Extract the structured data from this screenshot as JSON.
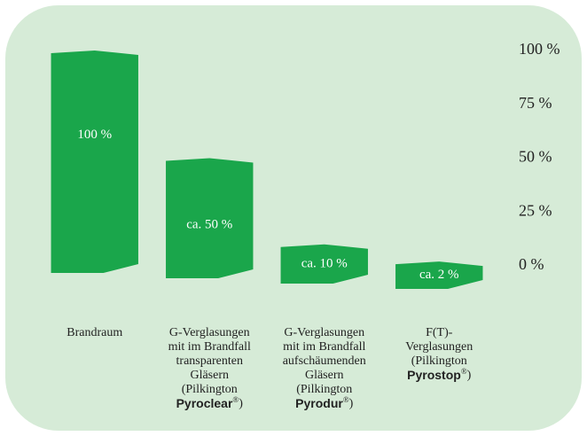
{
  "chart_data": {
    "type": "bar",
    "categories": [
      "Brandraum",
      "G-Verglasungen\nmit im Brandfall\ntransparenten\nGläsern\n(Pilkington\nPyroclear®)",
      "G-Verglasungen\nmit im Brandfall\naufschäumenden\nGläsern\n(Pilkington\nPyrodur®)",
      "F(T)-\nVerglasungen\n(Pilkington\nPyrostop®)"
    ],
    "values": [
      100,
      50,
      10,
      2
    ],
    "value_labels": [
      "100 %",
      "ca. 50 %",
      "ca. 10 %",
      "ca. 2 %"
    ],
    "color": "#1aa64b",
    "ylim": [
      0,
      100
    ],
    "yticks": [
      {
        "value": 0,
        "label": "0 %"
      },
      {
        "value": 25,
        "label": "25 %"
      },
      {
        "value": 50,
        "label": "50 %"
      },
      {
        "value": 75,
        "label": "75 %"
      },
      {
        "value": 100,
        "label": "100 %"
      }
    ]
  }
}
